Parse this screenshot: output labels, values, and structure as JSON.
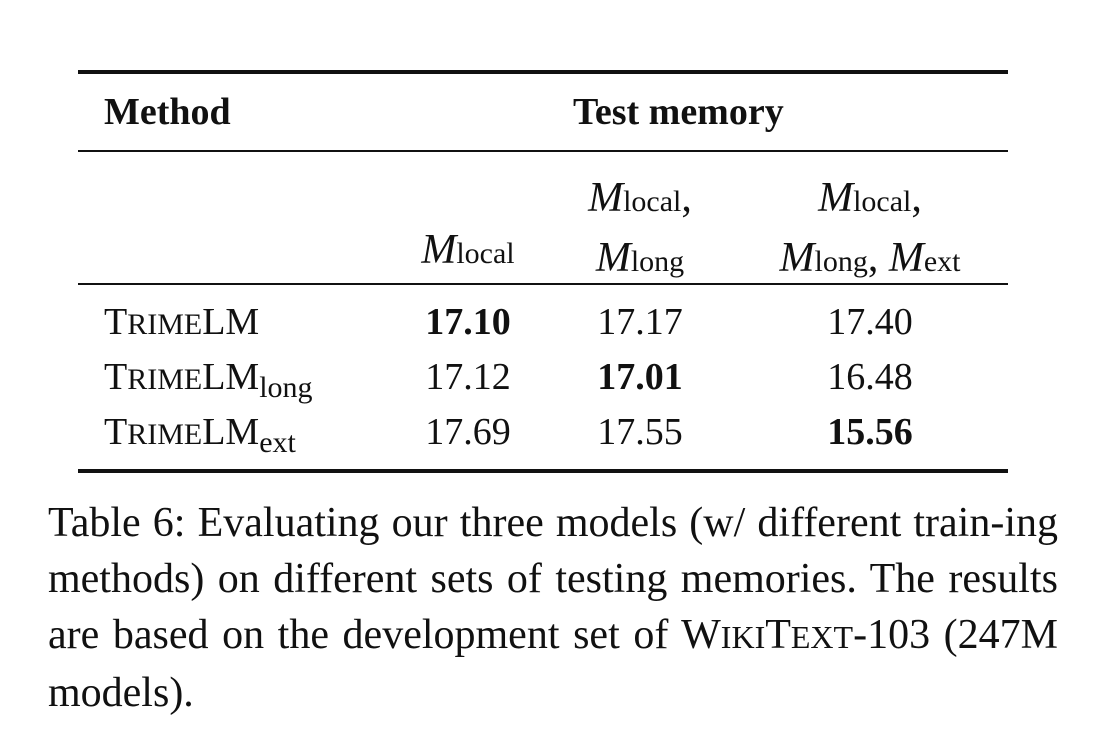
{
  "table": {
    "header": {
      "method": "Method",
      "group": "Test memory"
    },
    "columns": [
      {
        "lines": [
          [
            "local"
          ]
        ]
      },
      {
        "lines": [
          [
            "local"
          ],
          [
            "long"
          ]
        ]
      },
      {
        "lines": [
          [
            "local"
          ],
          [
            "long",
            "ext"
          ]
        ]
      }
    ],
    "memory_symbol": "M",
    "rows": [
      {
        "method": {
          "T": "T",
          "rime": "RIME",
          "lm": "LM",
          "sub": ""
        },
        "values": [
          "17.10",
          "17.17",
          "17.40"
        ],
        "best_index": 0
      },
      {
        "method": {
          "T": "T",
          "rime": "RIME",
          "lm": "LM",
          "sub": "long"
        },
        "values": [
          "17.12",
          "17.01",
          "16.48"
        ],
        "best_index": 1
      },
      {
        "method": {
          "T": "T",
          "rime": "RIME",
          "lm": "LM",
          "sub": "ext"
        },
        "values": [
          "17.69",
          "17.55",
          "15.56"
        ],
        "best_index": 2
      }
    ]
  },
  "caption": {
    "part1": "Table 6: Evaluating our three models (w/ different train-ing methods) on different sets of testing memories. The results are based on the development set of ",
    "wiki_W": "W",
    "wiki_iki": "IKI",
    "wiki_T": "T",
    "wiki_ext": "EXT",
    "part2": "-103 (247M models)."
  }
}
